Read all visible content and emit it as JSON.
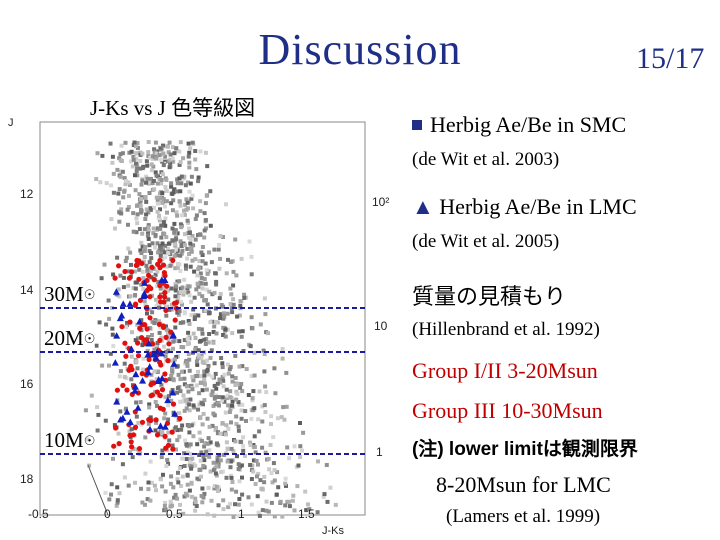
{
  "slide": {
    "title": "Discussion",
    "page_number": "15/17"
  },
  "plot": {
    "title": "J-Ks vs J 色等級図",
    "y_axis_label": "J",
    "x_axis_label": "J-Ks",
    "x_ticks": [
      "-0.5",
      "0",
      "0.5",
      "1",
      "1.5"
    ],
    "y_ticks": [
      "12",
      "14",
      "16",
      "18"
    ],
    "colorbar_ticks": [
      "10²",
      "10",
      "1"
    ],
    "mass_lines": [
      {
        "label": "30M",
        "sun_symbol": "☉"
      },
      {
        "label": "20M",
        "sun_symbol": "☉"
      },
      {
        "label": "10M",
        "sun_symbol": "☉"
      }
    ],
    "marker_colors": {
      "smc": "#e01010",
      "lmc": "#1020c0",
      "mass_line": "#1a1aa0"
    }
  },
  "legend": {
    "smc_marker": "■",
    "smc_label": "Herbig Ae/Be in SMC",
    "smc_ref": "(de Wit et al. 2003)",
    "lmc_marker": "▲",
    "lmc_label": "Herbig Ae/Be in LMC",
    "lmc_ref": "(de Wit et al. 2005)"
  },
  "notes": {
    "heading": "質量の見積もり",
    "ref1": "(Hillenbrand et al. 1992)",
    "group12": "Group I/II 3-20Msun",
    "group3": "Group III 10-30Msun",
    "lower_limit": "(注) lower limitは観測限界",
    "lmc_range": "8-20Msun for LMC",
    "ref2": "(Lamers et al. 1999)"
  }
}
